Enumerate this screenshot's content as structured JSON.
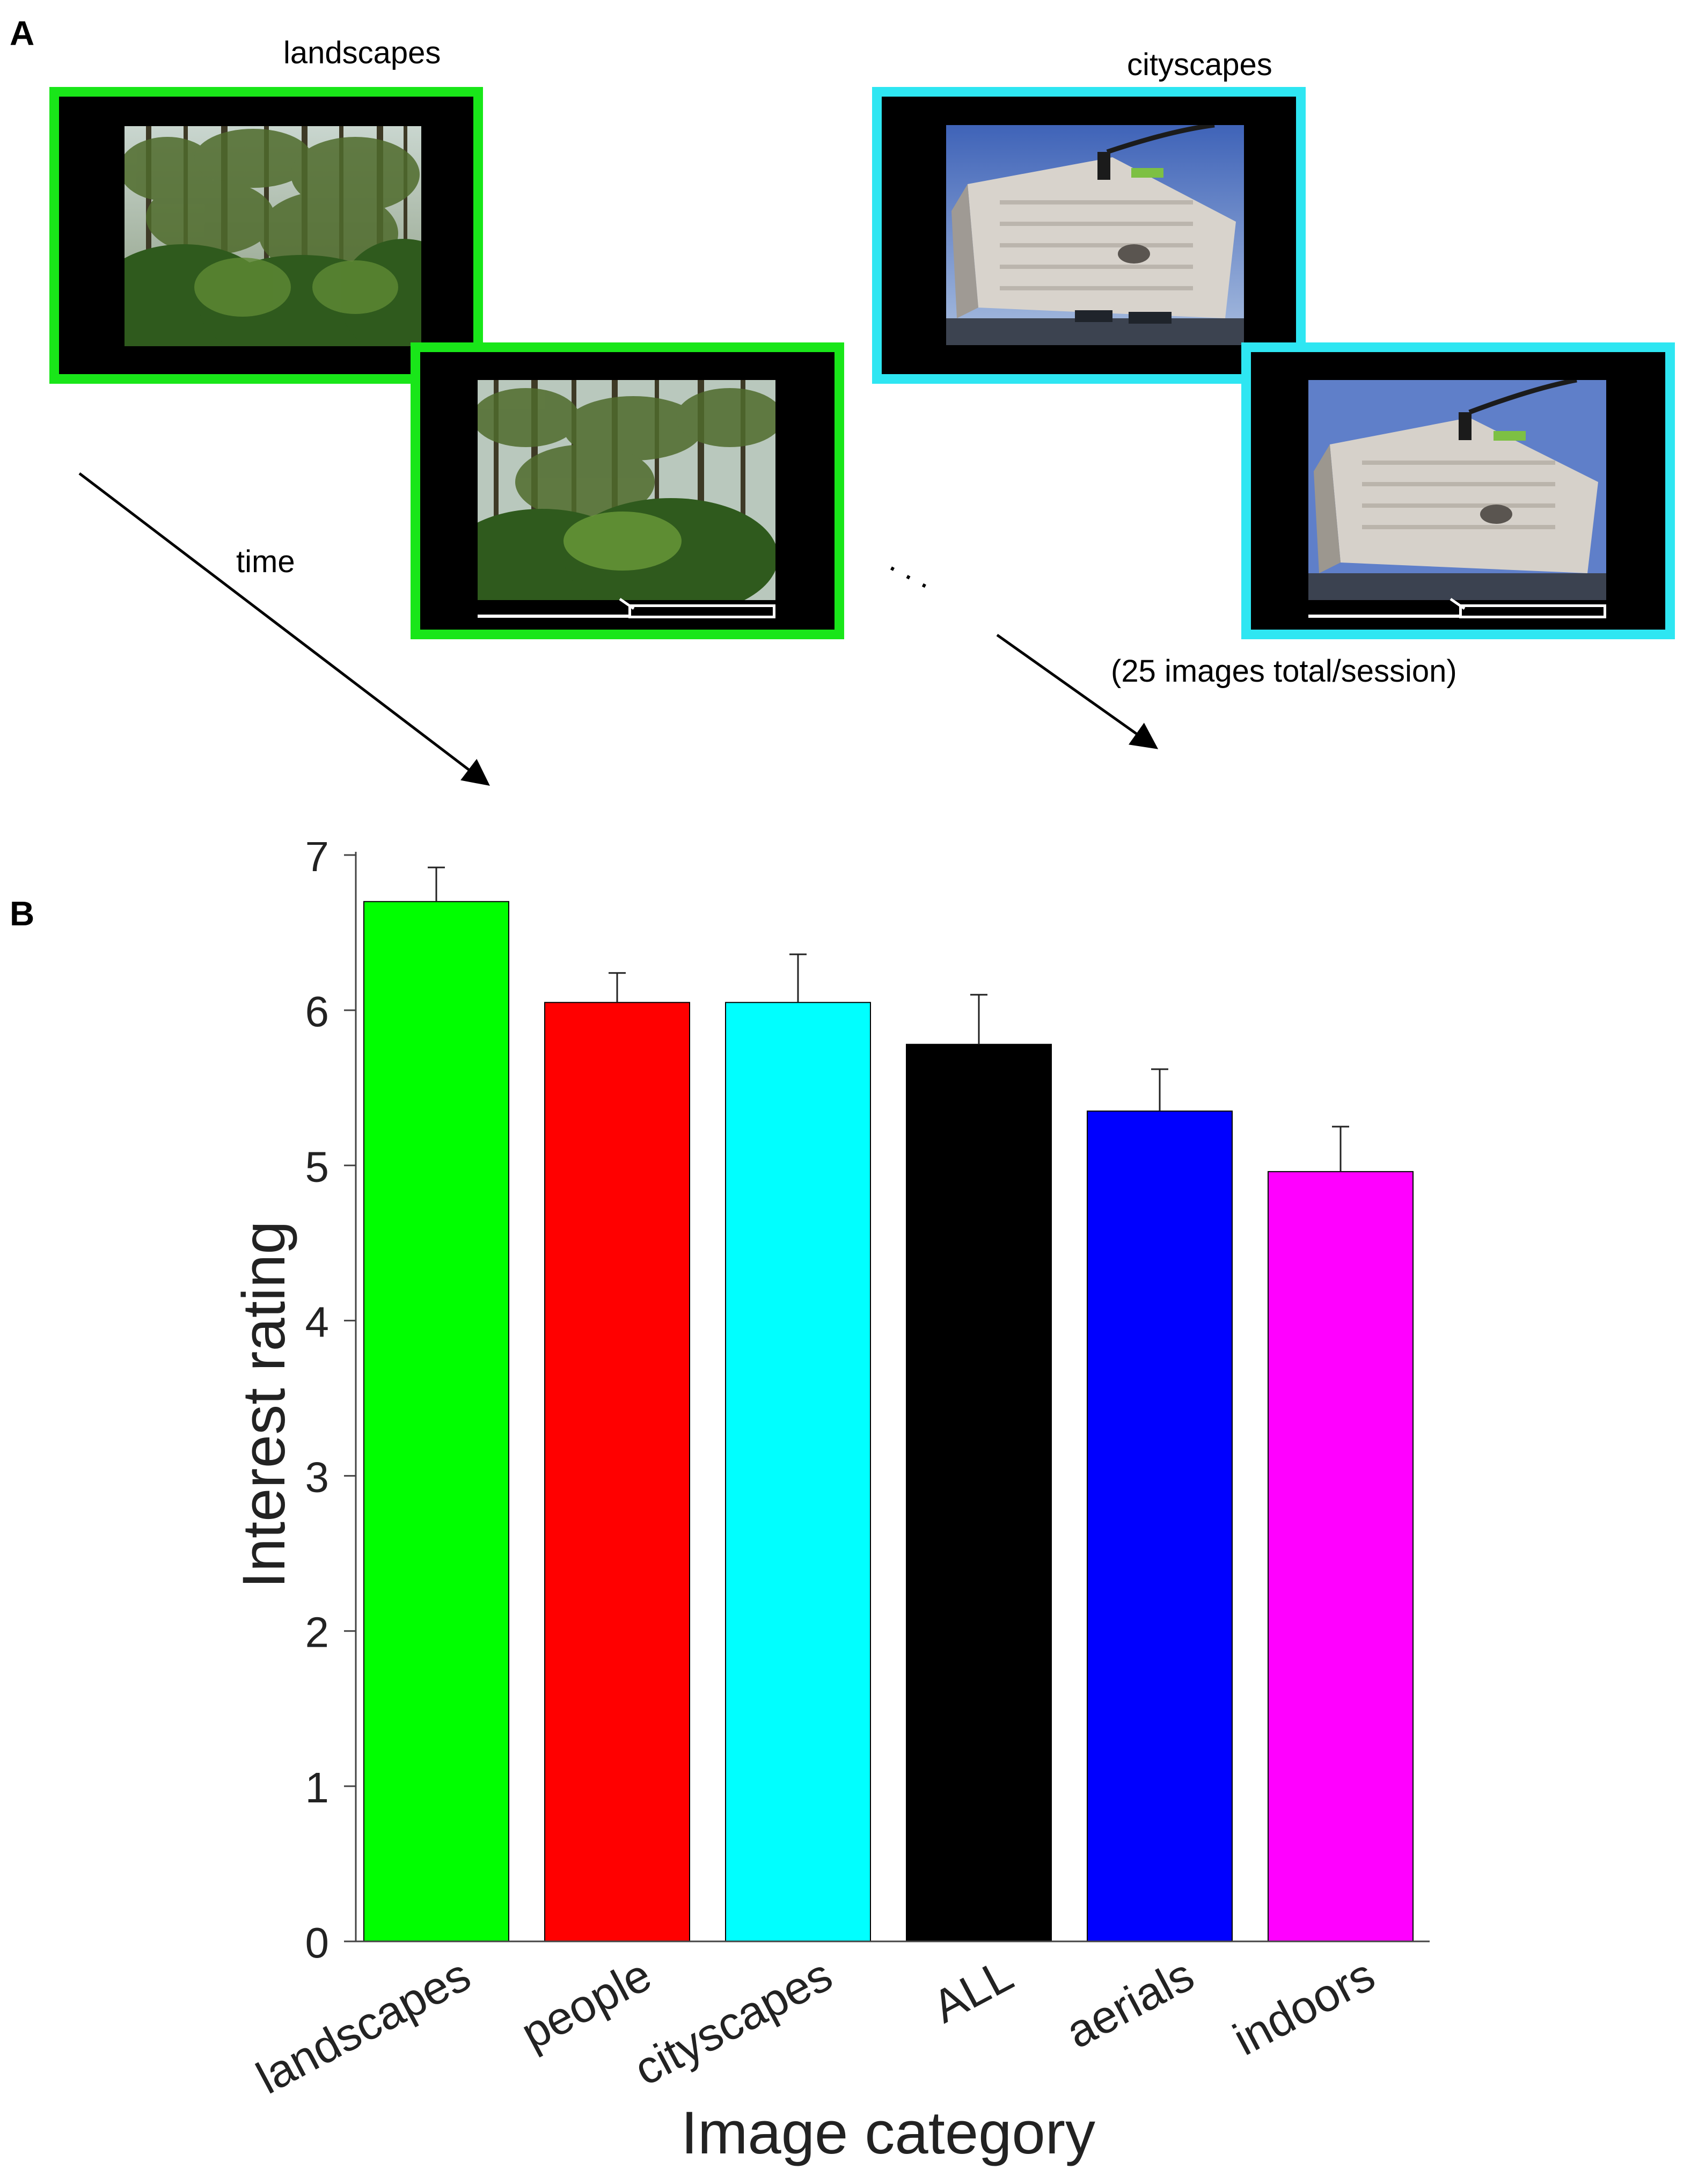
{
  "panels": {
    "a": "A",
    "b": "B"
  },
  "schematic": {
    "landscapes_title": "landscapes",
    "cityscapes_title": "cityscapes",
    "time_label": "time",
    "session_note": "(25 images total/session)",
    "ellipsis": ". . .",
    "colors": {
      "landscapes_frame": "#19e619",
      "cityscapes_frame": "#2ee6f2"
    },
    "photos": {
      "landscapes": "forest-photo",
      "cityscapes": "building-photo"
    }
  },
  "chart_data": {
    "type": "bar",
    "categories": [
      "landscapes",
      "people",
      "cityscapes",
      "ALL",
      "aerials",
      "indoors"
    ],
    "values": [
      6.7,
      6.05,
      6.05,
      5.78,
      5.35,
      4.96
    ],
    "errors": [
      0.22,
      0.19,
      0.31,
      0.32,
      0.27,
      0.29
    ],
    "colors": [
      "#00ff00",
      "#ff0000",
      "#00ffff",
      "#000000",
      "#0000ff",
      "#ff00ff"
    ],
    "xlabel": "Image category",
    "ylabel": "Interest rating",
    "ylim": [
      0,
      7
    ],
    "yticks": [
      0,
      1,
      2,
      3,
      4,
      5,
      6,
      7
    ],
    "grid": false,
    "legend": "none"
  }
}
